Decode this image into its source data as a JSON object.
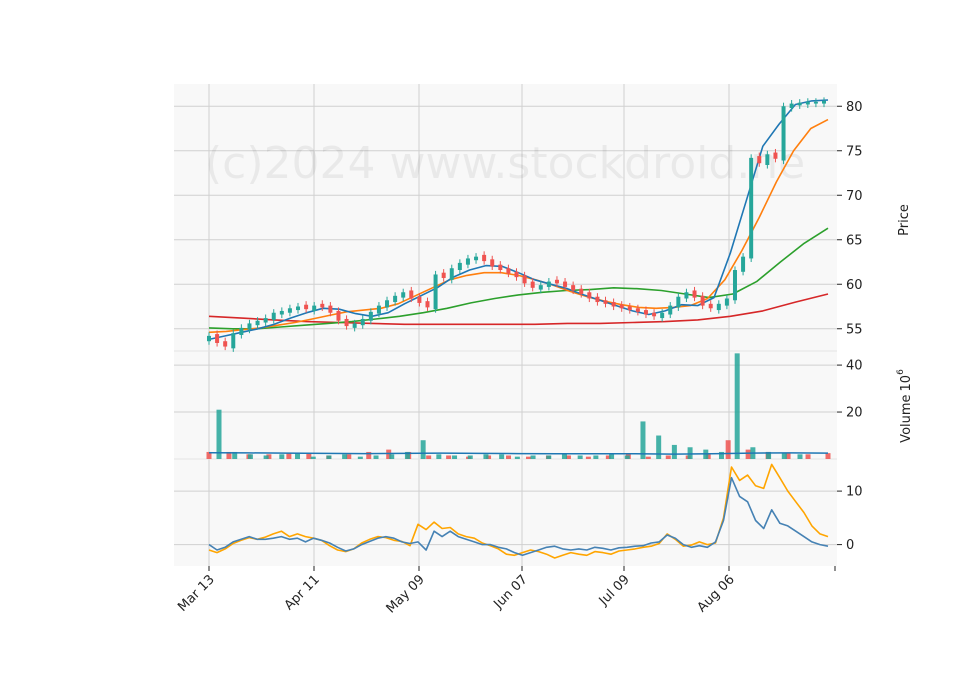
{
  "chart_data": {
    "type": "candlestick",
    "watermark": "(c)2024 www.stockdroid.ne",
    "x_ticks": [
      "Mar 13",
      "Apr 11",
      "May 09",
      "Jun 07",
      "Jul 09",
      "Aug 06"
    ],
    "price_axis": {
      "label": "Price",
      "ticks": [
        55,
        60,
        65,
        70,
        75,
        80
      ],
      "ylim": [
        52.5,
        82.5
      ]
    },
    "volume_axis": {
      "label": "Volume",
      "label_exponent": "6",
      "ticks": [
        20,
        40
      ],
      "ylim": [
        0,
        46
      ]
    },
    "osc_axis": {
      "label": "",
      "ticks": [
        0,
        10
      ],
      "ylim": [
        -4,
        16
      ]
    },
    "colors": {
      "up": "#26a69a",
      "down": "#ef5350",
      "ma_fast": "#1f77b4",
      "ma_mid": "#ff7f0e",
      "ma_slow": "#2ca02c",
      "ma_long": "#d62728",
      "osc_1": "#4682b4",
      "osc_2": "#ffa500",
      "panel_bg": "#f8f8f8",
      "grid": "#d0d0d0"
    },
    "candles_summary": {
      "start": "2024-03-13",
      "end": "2024-08-30",
      "close": [
        54.2,
        53.4,
        53.0,
        54.5,
        55.1,
        55.6,
        55.9,
        56.2,
        56.8,
        57.0,
        57.3,
        57.5,
        57.2,
        57.6,
        57.4,
        56.8,
        55.9,
        55.3,
        55.6,
        56.1,
        56.9,
        57.6,
        58.2,
        58.7,
        59.1,
        58.4,
        57.9,
        57.4,
        61.1,
        60.7,
        61.8,
        62.4,
        62.9,
        63.1,
        62.6,
        62.0,
        61.6,
        61.2,
        60.8,
        60.1,
        59.6,
        59.9,
        60.3,
        60.1,
        59.7,
        59.3,
        58.9,
        58.4,
        58.0,
        57.8,
        57.5,
        57.3,
        57.1,
        56.9,
        56.6,
        56.4,
        56.8,
        57.6,
        58.6,
        59.1,
        58.5,
        57.6,
        57.3,
        57.8,
        58.4,
        61.6,
        63.1,
        74.2,
        73.6,
        74.6,
        74.1,
        80.0,
        80.3,
        80.4,
        80.5,
        80.5,
        80.6
      ]
    },
    "ma_fast": [
      53.8,
      54.2,
      54.6,
      55.0,
      55.5,
      56.2,
      56.8,
      57.3,
      57.2,
      56.7,
      56.4,
      56.8,
      57.8,
      58.7,
      59.6,
      60.8,
      61.6,
      62.1,
      62.0,
      61.3,
      60.5,
      60.0,
      59.5,
      58.8,
      58.2,
      57.6,
      57.0,
      56.6,
      57.0,
      57.7,
      57.6,
      58.5,
      63.5,
      69.5,
      75.5,
      78.0,
      80.2,
      80.6,
      80.7
    ],
    "ma_mid": [
      54.6,
      54.7,
      54.9,
      55.1,
      55.4,
      55.7,
      56.1,
      56.5,
      56.9,
      57.1,
      57.3,
      57.8,
      58.7,
      59.6,
      60.5,
      61.0,
      61.3,
      61.3,
      61.0,
      60.5,
      59.9,
      59.2,
      58.6,
      58.1,
      57.7,
      57.4,
      57.3,
      57.4,
      57.6,
      58.4,
      60.5,
      63.8,
      67.5,
      71.5,
      75.0,
      77.5,
      78.5
    ],
    "ma_slow": [
      55.1,
      55.0,
      55.0,
      55.2,
      55.4,
      55.6,
      55.8,
      56.1,
      56.4,
      56.8,
      57.3,
      57.9,
      58.4,
      58.8,
      59.1,
      59.3,
      59.4,
      59.6,
      59.5,
      59.3,
      58.9,
      58.5,
      58.9,
      60.3,
      62.5,
      64.6,
      66.3
    ],
    "ma_long": [
      56.4,
      56.2,
      56.0,
      55.8,
      55.7,
      55.6,
      55.5,
      55.5,
      55.5,
      55.5,
      55.5,
      55.6,
      55.6,
      55.7,
      55.8,
      56.0,
      56.4,
      57.0,
      58.0,
      58.9
    ],
    "volume_up": [
      21,
      3,
      2,
      1.5,
      2,
      2.5,
      1,
      1.5,
      2,
      1,
      1.5,
      2,
      3,
      8,
      2,
      1.5,
      1.5,
      2,
      2,
      1,
      1.5,
      1.5,
      2,
      1.5,
      1.5,
      2.5,
      1.5,
      16,
      10,
      6,
      5,
      4,
      3,
      45,
      5,
      3,
      2.5,
      2
    ],
    "volume_down": [
      3,
      3,
      2,
      2,
      2.5,
      2.5,
      1.5,
      2,
      3,
      4,
      3,
      1.5,
      1.5,
      1,
      1.5,
      1.5,
      1,
      1.5,
      1.5,
      1,
      1.5,
      2,
      1,
      1.5,
      1.5,
      2,
      8,
      4,
      3,
      2.5,
      2,
      2.5
    ],
    "volume_avg": [
      2.7,
      2.6,
      2.5,
      2.4,
      2.3,
      2.4,
      2.5,
      2.4,
      2.3,
      2.2,
      2.2,
      2.2,
      2.1,
      2.2,
      2.5,
      2.6,
      2.5
    ],
    "osc_1": [
      0,
      -1,
      -0.5,
      0.5,
      1,
      1.5,
      1,
      1,
      1.2,
      1.5,
      1,
      1.2,
      0.5,
      1.2,
      0.8,
      0.3,
      -0.5,
      -1.2,
      -0.8,
      0,
      0.6,
      1.2,
      1.5,
      1.2,
      0.5,
      0.2,
      0.5,
      -1,
      2.5,
      1.5,
      2.5,
      1.5,
      1,
      0.5,
      0,
      0,
      -0.5,
      -0.8,
      -1.5,
      -2,
      -1.5,
      -1,
      -0.5,
      -0.3,
      -0.8,
      -1,
      -0.8,
      -1,
      -0.5,
      -0.7,
      -1,
      -0.6,
      -0.5,
      -0.3,
      -0.2,
      0.3,
      0.5,
      1.8,
      1.2,
      0,
      -0.5,
      -0.2,
      -0.5,
      0.5,
      4.5,
      12.5,
      9,
      8,
      4.5,
      3,
      6.5,
      4,
      3.5,
      2.5,
      1.5,
      0.5,
      0,
      -0.3
    ],
    "osc_2": [
      -1,
      -1.5,
      -0.8,
      0.2,
      0.8,
      1.3,
      1,
      1.4,
      2,
      2.5,
      1.5,
      2,
      1.5,
      1.2,
      0.8,
      -0.2,
      -1,
      -1.3,
      -0.8,
      0.3,
      1,
      1.5,
      1.3,
      0.8,
      0.6,
      -0.2,
      3.8,
      2.8,
      4.2,
      3,
      3.2,
      2,
      1.5,
      1.2,
      0.3,
      -0.2,
      -0.8,
      -1.8,
      -2,
      -1.5,
      -1,
      -1.3,
      -1.8,
      -2.5,
      -2,
      -1.5,
      -1.8,
      -2,
      -1.3,
      -1.5,
      -1.8,
      -1.2,
      -1,
      -0.8,
      -0.5,
      -0.3,
      0.2,
      2,
      1,
      -0.3,
      -0.1,
      0.5,
      0,
      0.3,
      5,
      14.5,
      12,
      13,
      11,
      10.5,
      15,
      12.5,
      10,
      8,
      6,
      3.5,
      2,
      1.5
    ]
  }
}
